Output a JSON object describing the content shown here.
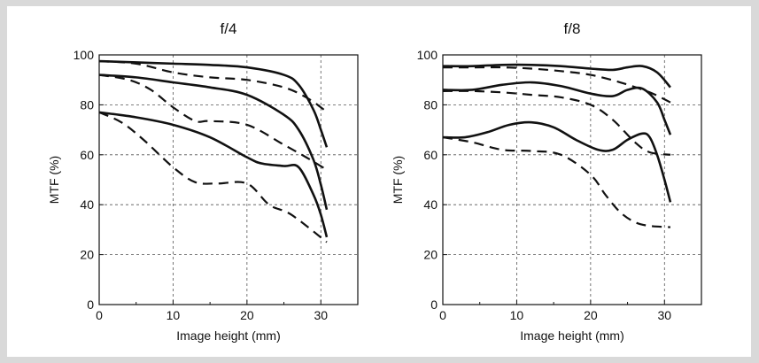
{
  "chart_data": [
    {
      "type": "line",
      "title": "f/4",
      "xlabel": "Image height (mm)",
      "ylabel": "MTF (%)",
      "xlim": [
        0,
        35
      ],
      "ylim": [
        0,
        100
      ],
      "xticks": [
        0,
        10,
        20,
        30
      ],
      "yticks": [
        0,
        20,
        40,
        60,
        80,
        100
      ],
      "grid": true,
      "series": [
        {
          "style": "solid",
          "x": [
            0,
            5,
            10,
            15,
            20,
            25,
            27,
            29,
            30,
            30.8
          ],
          "y": [
            97.5,
            97,
            96.5,
            96,
            95,
            92,
            88,
            78,
            70,
            63
          ]
        },
        {
          "style": "dashed",
          "x": [
            0,
            5,
            10,
            15,
            20,
            25,
            28,
            30,
            30.8
          ],
          "y": [
            97.5,
            96.5,
            93,
            91,
            90,
            87,
            83,
            79,
            77
          ]
        },
        {
          "style": "solid",
          "x": [
            0,
            5,
            10,
            15,
            20,
            25,
            27,
            29,
            30,
            30.8
          ],
          "y": [
            92,
            91,
            89,
            87,
            84,
            76,
            70,
            58,
            48,
            38
          ]
        },
        {
          "style": "dashed",
          "x": [
            0,
            4,
            7,
            10,
            13,
            15,
            20,
            25,
            28,
            30.8
          ],
          "y": [
            92,
            90,
            86,
            79,
            73.5,
            73.5,
            72,
            64,
            59,
            54
          ]
        },
        {
          "style": "solid",
          "x": [
            0,
            5,
            10,
            15,
            20,
            22,
            25,
            27,
            29,
            30,
            30.8
          ],
          "y": [
            77,
            75,
            72,
            67,
            59,
            56.5,
            55.5,
            55,
            44,
            36,
            27
          ]
        },
        {
          "style": "dashed",
          "x": [
            0,
            3,
            6,
            10,
            13,
            16,
            20,
            23,
            26,
            30.8
          ],
          "y": [
            77,
            73,
            66,
            55,
            49,
            48.5,
            48.5,
            40,
            36,
            25
          ]
        }
      ]
    },
    {
      "type": "line",
      "title": "f/8",
      "xlabel": "Image height (mm)",
      "ylabel": "MTF (%)",
      "xlim": [
        0,
        35
      ],
      "ylim": [
        0,
        100
      ],
      "xticks": [
        0,
        10,
        20,
        30
      ],
      "yticks": [
        0,
        20,
        40,
        60,
        80,
        100
      ],
      "grid": true,
      "series": [
        {
          "style": "solid",
          "x": [
            0,
            4,
            8,
            12,
            16,
            20,
            23,
            25,
            27,
            29,
            30.8
          ],
          "y": [
            95.5,
            95.5,
            96,
            96,
            95.5,
            94.5,
            94,
            95,
            95.5,
            93,
            87
          ]
        },
        {
          "style": "dashed",
          "x": [
            0,
            4,
            8,
            12,
            16,
            20,
            24,
            28,
            30.8
          ],
          "y": [
            95,
            95,
            95,
            94.5,
            93.5,
            92,
            89,
            85,
            81
          ]
        },
        {
          "style": "solid",
          "x": [
            0,
            4,
            8,
            12,
            16,
            20,
            23,
            25,
            27,
            29,
            30,
            30.8
          ],
          "y": [
            86,
            86,
            88,
            89,
            87.5,
            84.5,
            83.5,
            86,
            86.5,
            81,
            74,
            68
          ]
        },
        {
          "style": "dashed",
          "x": [
            0,
            4,
            8,
            12,
            16,
            20,
            23,
            26,
            28,
            30.8
          ],
          "y": [
            85.5,
            85.5,
            85,
            84,
            83,
            80,
            74,
            65,
            61,
            60
          ]
        },
        {
          "style": "solid",
          "x": [
            0,
            3,
            6,
            9,
            12,
            15,
            18,
            21,
            23,
            25,
            27,
            28,
            29,
            30,
            30.8
          ],
          "y": [
            67,
            67,
            69,
            72,
            73,
            71,
            66,
            62,
            62,
            66,
            68.5,
            67,
            60,
            50,
            41
          ]
        },
        {
          "style": "dashed",
          "x": [
            0,
            4,
            8,
            12,
            16,
            20,
            22,
            24,
            26,
            28,
            30.8
          ],
          "y": [
            67,
            65,
            62,
            61.5,
            60,
            52,
            44,
            37,
            33,
            31.5,
            31
          ]
        }
      ]
    }
  ]
}
